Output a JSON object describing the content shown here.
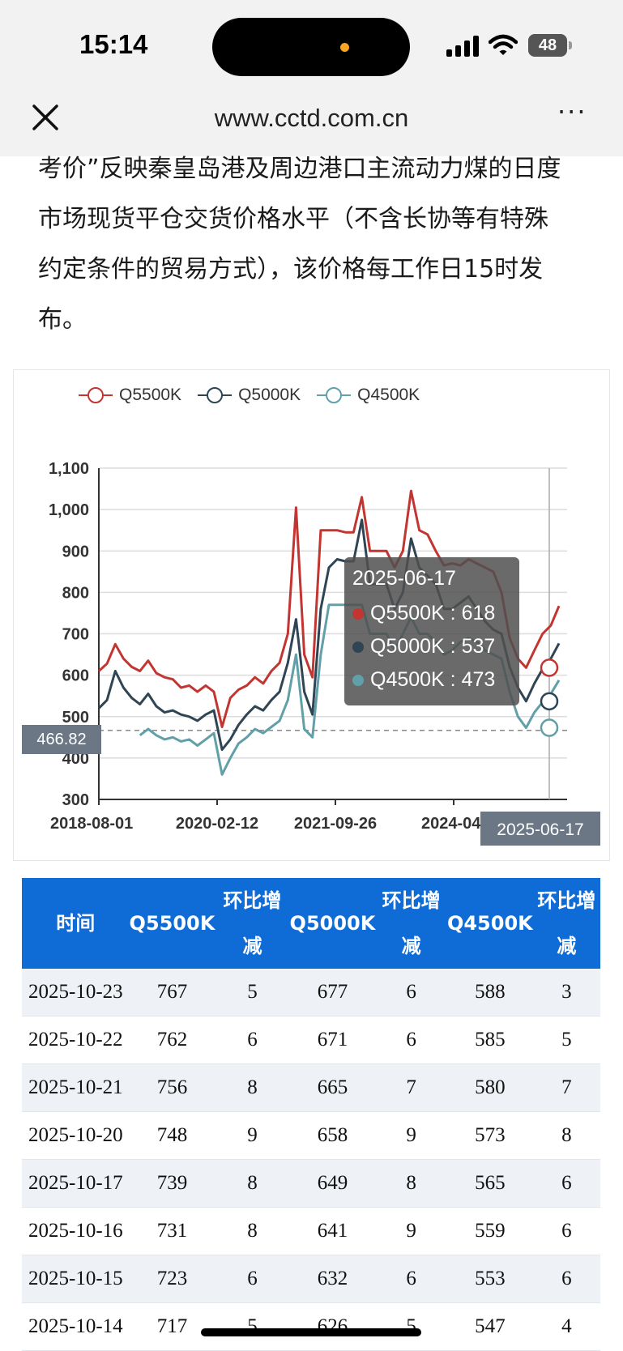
{
  "status_bar": {
    "time": "15:14",
    "battery": "48"
  },
  "browser": {
    "url": "www.cctd.com.cn",
    "more_label": "···"
  },
  "article": {
    "line1": "考价”反映秦皇岛港及周边港口主流动力煤的日度",
    "line2": "市场现货平仓交货价格水平（不含长协等有特殊",
    "line3": "约定条件的贸易方式），该价格每工作日15时发",
    "line4": "布。"
  },
  "chart_data": {
    "type": "line",
    "title": "",
    "xlabel": "",
    "ylabel": "",
    "ylim": [
      300,
      1100
    ],
    "yticks": [
      "1,100",
      "1,000",
      "900",
      "800",
      "700",
      "600",
      "500",
      "400",
      "300"
    ],
    "xticks": [
      "2018-08-01",
      "2020-02-12",
      "2021-09-26",
      "2024-04-"
    ],
    "grid": true,
    "legend_position": "top-left",
    "series": [
      {
        "name": "Q5500K",
        "color": "#c23531",
        "values": [
          610,
          628,
          675,
          640,
          620,
          610,
          635,
          605,
          595,
          590,
          570,
          575,
          560,
          575,
          560,
          475,
          545,
          565,
          575,
          595,
          580,
          610,
          630,
          700,
          1005,
          650,
          595,
          950,
          950,
          950,
          945,
          945,
          1030,
          900,
          900,
          900,
          860,
          900,
          1045,
          950,
          940,
          900,
          865,
          870,
          865,
          880,
          870,
          860,
          850,
          800,
          690,
          640,
          618,
          660,
          700,
          720,
          767
        ]
      },
      {
        "name": "Q5000K",
        "color": "#2f4554",
        "values": [
          520,
          540,
          610,
          570,
          545,
          530,
          555,
          525,
          510,
          515,
          505,
          500,
          490,
          505,
          515,
          420,
          445,
          480,
          505,
          525,
          515,
          540,
          560,
          630,
          735,
          560,
          505,
          760,
          860,
          880,
          875,
          875,
          975,
          820,
          820,
          820,
          760,
          800,
          930,
          860,
          840,
          820,
          760,
          760,
          775,
          790,
          760,
          730,
          710,
          700,
          620,
          570,
          537,
          580,
          615,
          640,
          677
        ]
      },
      {
        "name": "Q4500K",
        "color": "#61a0a8",
        "values": [
          null,
          null,
          null,
          null,
          null,
          455,
          470,
          455,
          445,
          450,
          440,
          445,
          430,
          445,
          460,
          360,
          400,
          435,
          450,
          470,
          460,
          475,
          490,
          540,
          650,
          470,
          450,
          650,
          770,
          770,
          770,
          770,
          770,
          700,
          700,
          700,
          660,
          700,
          740,
          700,
          700,
          680,
          650,
          660,
          680,
          690,
          680,
          660,
          650,
          640,
          560,
          500,
          473,
          510,
          535,
          555,
          588
        ]
      }
    ],
    "tooltip": {
      "date": "2025-06-17",
      "rows": [
        "Q5500K : 618",
        "Q5000K : 537",
        "Q4500K : 473"
      ]
    },
    "crosshair": {
      "y_value": "466.82",
      "x_value": "2025-06-17"
    }
  },
  "table": {
    "headers": [
      "时间",
      "Q5500K",
      "环比增减",
      "Q5000K",
      "环比增减",
      "Q4500K",
      "环比增减"
    ],
    "rows": [
      [
        "2025-10-23",
        "767",
        "5",
        "677",
        "6",
        "588",
        "3"
      ],
      [
        "2025-10-22",
        "762",
        "6",
        "671",
        "6",
        "585",
        "5"
      ],
      [
        "2025-10-21",
        "756",
        "8",
        "665",
        "7",
        "580",
        "7"
      ],
      [
        "2025-10-20",
        "748",
        "9",
        "658",
        "9",
        "573",
        "8"
      ],
      [
        "2025-10-17",
        "739",
        "8",
        "649",
        "8",
        "565",
        "6"
      ],
      [
        "2025-10-16",
        "731",
        "8",
        "641",
        "9",
        "559",
        "6"
      ],
      [
        "2025-10-15",
        "723",
        "6",
        "632",
        "6",
        "553",
        "6"
      ],
      [
        "2025-10-14",
        "717",
        "5",
        "626",
        "5",
        "547",
        "4"
      ]
    ]
  }
}
